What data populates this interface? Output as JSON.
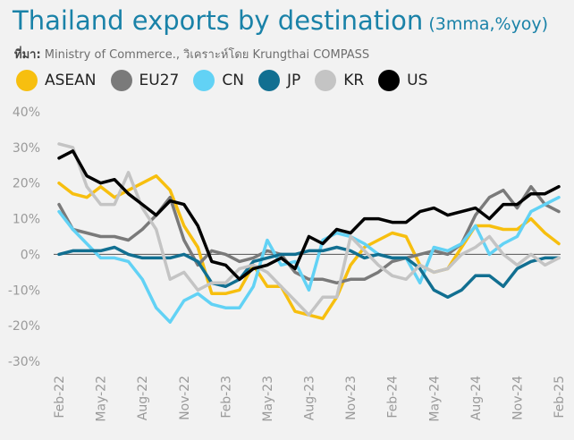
{
  "header": {
    "title": "Thailand exports by destination",
    "subtitle": "(3mma,%yoy)",
    "source_label": "ที่มา:",
    "source_text": " Ministry of Commerce., วิเคราะห์โดย Krungthai COMPASS"
  },
  "legend": [
    {
      "name": "ASEAN",
      "color": "#f7bf0f"
    },
    {
      "name": "EU27",
      "color": "#7a7a7a"
    },
    {
      "name": "CN",
      "color": "#62d2f5"
    },
    {
      "name": "JP",
      "color": "#116f91"
    },
    {
      "name": "KR",
      "color": "#c4c4c4"
    },
    {
      "name": "US",
      "color": "#000000"
    }
  ],
  "chart_data": {
    "type": "line",
    "title": "Thailand exports by destination",
    "ylim": [
      -30,
      40
    ],
    "yticks": [
      40,
      30,
      20,
      10,
      0,
      -10,
      -20,
      -30
    ],
    "ytick_labels": [
      "40%",
      "30%",
      "20%",
      "10%",
      "0%",
      "-10%",
      "-20%",
      "-30%"
    ],
    "x": [
      "Feb-22",
      "Mar-22",
      "Apr-22",
      "May-22",
      "Jun-22",
      "Jul-22",
      "Aug-22",
      "Sep-22",
      "Oct-22",
      "Nov-22",
      "Dec-22",
      "Jan-23",
      "Feb-23",
      "Mar-23",
      "Apr-23",
      "May-23",
      "Jun-23",
      "Jul-23",
      "Aug-23",
      "Sep-23",
      "Oct-23",
      "Nov-23",
      "Dec-23",
      "Jan-24",
      "Feb-24",
      "Mar-24",
      "Apr-24",
      "May-24",
      "Jun-24",
      "Jul-24",
      "Aug-24",
      "Sep-24",
      "Oct-24",
      "Nov-24",
      "Dec-24",
      "Jan-25",
      "Feb-25"
    ],
    "xtick_labels": [
      "Feb-22",
      "May-22",
      "Aug-22",
      "Nov-22",
      "Feb-23",
      "May-23",
      "Aug-23",
      "Nov-23",
      "Feb-24",
      "May-24",
      "Aug-24",
      "Nov-24",
      "Feb-25"
    ],
    "grid": false,
    "legend_position": "top",
    "series": [
      {
        "name": "ASEAN",
        "color": "#f7bf0f",
        "values": [
          20,
          17,
          16,
          19,
          16,
          18,
          20,
          22,
          18,
          8,
          2,
          -11,
          -11,
          -10,
          -3,
          -9,
          -9,
          -16,
          -17,
          -18,
          -12,
          -3,
          2,
          4,
          6,
          5,
          -3,
          -5,
          -4,
          2,
          8,
          8,
          7,
          7,
          10,
          6,
          3
        ]
      },
      {
        "name": "EU27",
        "color": "#7a7a7a",
        "values": [
          14,
          7,
          6,
          5,
          5,
          4,
          7,
          11,
          16,
          4,
          -3,
          1,
          0,
          -2,
          -1,
          1,
          0,
          -5,
          -7,
          -7,
          -8,
          -7,
          -7,
          -5,
          -2,
          -1,
          0,
          1,
          0,
          3,
          11,
          16,
          18,
          13,
          19,
          14,
          12
        ]
      },
      {
        "name": "CN",
        "color": "#62d2f5",
        "values": [
          12,
          7,
          3,
          -1,
          -1,
          -2,
          -7,
          -15,
          -19,
          -13,
          -11,
          -14,
          -15,
          -15,
          -9,
          4,
          -3,
          -2,
          -10,
          4,
          6,
          5,
          3,
          0,
          -1,
          -1,
          -8,
          2,
          1,
          3,
          8,
          0,
          3,
          5,
          12,
          14,
          16
        ]
      },
      {
        "name": "JP",
        "color": "#116f91",
        "values": [
          0,
          1,
          1,
          1,
          2,
          0,
          -1,
          -1,
          -1,
          0,
          -2,
          -8,
          -9,
          -7,
          -2,
          -1,
          0,
          0,
          1,
          1,
          2,
          1,
          -1,
          0,
          -1,
          -1,
          -4,
          -10,
          -12,
          -10,
          -6,
          -6,
          -9,
          -4,
          -2,
          -1,
          -1
        ]
      },
      {
        "name": "KR",
        "color": "#c4c4c4",
        "values": [
          31,
          30,
          19,
          14,
          14,
          23,
          13,
          7,
          -7,
          -5,
          -10,
          -8,
          -8,
          -4,
          -3,
          -5,
          -9,
          -13,
          -17,
          -12,
          -12,
          5,
          1,
          -3,
          -6,
          -7,
          -3,
          -5,
          -4,
          0,
          2,
          5,
          0,
          -3,
          0,
          -3,
          -1
        ]
      },
      {
        "name": "US",
        "color": "#000000",
        "values": [
          27,
          29,
          22,
          20,
          21,
          17,
          14,
          11,
          15,
          14,
          8,
          -2,
          -3,
          -7,
          -4,
          -3,
          -1,
          -4,
          5,
          3,
          7,
          6,
          10,
          10,
          9,
          9,
          12,
          13,
          11,
          12,
          13,
          10,
          14,
          14,
          17,
          17,
          19
        ]
      }
    ]
  }
}
